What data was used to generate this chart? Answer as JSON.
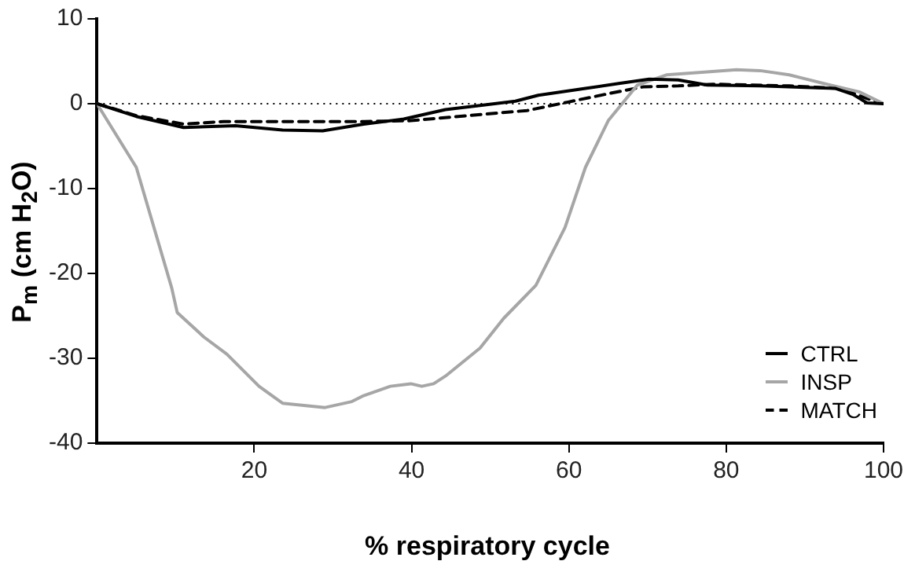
{
  "chart_data": {
    "type": "line",
    "xlabel": "% respiratory cycle",
    "ylabel": "P$_{m}$ (cm H$_{2}$O)",
    "xlim": [
      0,
      100
    ],
    "xticks": [
      20,
      40,
      60,
      80,
      100
    ],
    "ylim": [
      -40,
      10
    ],
    "yticks": [
      -40,
      -30,
      -20,
      -10,
      0,
      10
    ],
    "grid": false,
    "legend": "bottom right",
    "marker": "none",
    "ref_lines": [
      {
        "axis": "y",
        "value": 0,
        "line_style": "dotted",
        "color": "#000000"
      }
    ],
    "series": [
      {
        "name": "CTRL",
        "color": "#000000",
        "line_style": "solid",
        "x": [
          0,
          5,
          11,
          17.6,
          23.6,
          28.7,
          33.9,
          39,
          44.3,
          48.7,
          53.2,
          56.1,
          62.1,
          66.5,
          70.2,
          73.9,
          77.6,
          84.3,
          93.9,
          96.1,
          97.9,
          100
        ],
        "values": [
          0,
          -1.5,
          -2.8,
          -2.6,
          -3.1,
          -3.2,
          -2.4,
          -1.8,
          -0.7,
          -0.2,
          0.3,
          1.0,
          1.8,
          2.4,
          2.9,
          2.8,
          2.2,
          2.1,
          1.8,
          1.1,
          0.1,
          0
        ]
      },
      {
        "name": "INSP",
        "color": "#a6a6a6",
        "line_style": "solid",
        "x": [
          0,
          5,
          9.5,
          10.2,
          13.6,
          16.5,
          20.6,
          23.6,
          29,
          32.4,
          33.9,
          37.3,
          39.9,
          41.3,
          42.8,
          44.3,
          48.7,
          51.7,
          55.8,
          59.5,
          62.1,
          65,
          68.7,
          72.4,
          76.9,
          81.3,
          84.3,
          88,
          93.2,
          96.9,
          100
        ],
        "values": [
          0,
          -7.5,
          -21.7,
          -24.6,
          -27.5,
          -29.5,
          -33.3,
          -35.3,
          -35.8,
          -35.1,
          -34.4,
          -33.3,
          -33,
          -33.3,
          -33,
          -32.1,
          -28.8,
          -25.3,
          -21.4,
          -14.6,
          -7.5,
          -2,
          2.2,
          3.4,
          3.7,
          4,
          3.9,
          3.4,
          2.2,
          1.4,
          0
        ]
      },
      {
        "name": "MATCH",
        "color": "#000000",
        "line_style": "dashed",
        "x": [
          0,
          5,
          11,
          16.1,
          25,
          33.9,
          39.9,
          47.3,
          54.7,
          59.9,
          65.1,
          69.5,
          73.9,
          78.3,
          88,
          94.6,
          97.6,
          100
        ],
        "values": [
          0,
          -1.4,
          -2.4,
          -2.1,
          -2.1,
          -2.1,
          -2,
          -1.4,
          -0.8,
          0.2,
          1.2,
          2,
          2.1,
          2.3,
          2.1,
          1.8,
          0.7,
          0
        ]
      }
    ]
  }
}
